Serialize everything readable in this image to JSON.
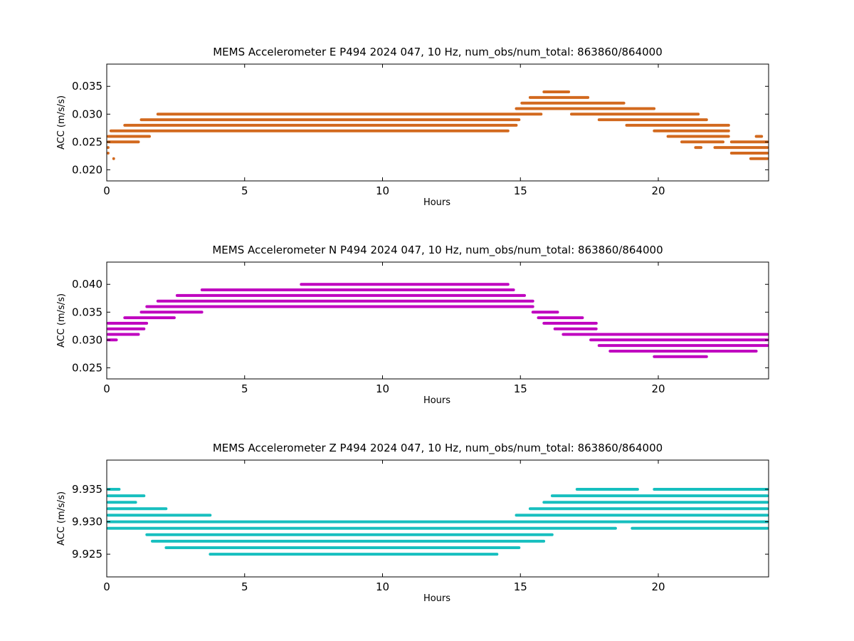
{
  "chart_data": [
    {
      "type": "scatter",
      "title": "MEMS Accelerometer E P494 2024 047, 10 Hz, num_obs/num_total: 863860/864000",
      "xlabel": "Hours",
      "ylabel": "ACC (m/s/s)",
      "xlim": [
        0,
        24
      ],
      "ylim": [
        0.018,
        0.039
      ],
      "xticks": [
        0,
        5,
        10,
        15,
        20
      ],
      "yticks": [
        0.02,
        0.025,
        0.03,
        0.035
      ],
      "ytick_labels": [
        "0.020",
        "0.025",
        "0.030",
        "0.035"
      ],
      "color": "#d2691e",
      "series": [
        {
          "levels": [
            {
              "y": 0.022,
              "x": [
                [
                  0.2,
                  0.3
                ],
                [
                  23.3,
                  24.0
                ]
              ]
            },
            {
              "y": 0.023,
              "x": [
                [
                  0.0,
                  0.1
                ],
                [
                  22.6,
                  24.0
                ]
              ]
            },
            {
              "y": 0.024,
              "x": [
                [
                  0.0,
                  0.1
                ],
                [
                  21.3,
                  21.6
                ],
                [
                  22.0,
                  24.0
                ]
              ]
            },
            {
              "y": 0.025,
              "x": [
                [
                  0.0,
                  1.2
                ],
                [
                  20.8,
                  22.4
                ],
                [
                  22.6,
                  24.0
                ]
              ]
            },
            {
              "y": 0.026,
              "x": [
                [
                  0.0,
                  1.6
                ],
                [
                  20.3,
                  22.6
                ],
                [
                  23.5,
                  23.8
                ]
              ]
            },
            {
              "y": 0.027,
              "x": [
                [
                  0.1,
                  14.6
                ],
                [
                  19.8,
                  22.6
                ]
              ]
            },
            {
              "y": 0.028,
              "x": [
                [
                  0.6,
                  14.9
                ],
                [
                  18.8,
                  22.6
                ]
              ]
            },
            {
              "y": 0.029,
              "x": [
                [
                  1.2,
                  15.0
                ],
                [
                  17.8,
                  21.8
                ]
              ]
            },
            {
              "y": 0.03,
              "x": [
                [
                  1.8,
                  15.8
                ],
                [
                  16.8,
                  21.5
                ]
              ]
            },
            {
              "y": 0.031,
              "x": [
                [
                  14.8,
                  19.9
                ]
              ]
            },
            {
              "y": 0.032,
              "x": [
                [
                  15.0,
                  18.8
                ]
              ]
            },
            {
              "y": 0.033,
              "x": [
                [
                  15.3,
                  17.5
                ]
              ]
            },
            {
              "y": 0.034,
              "x": [
                [
                  15.8,
                  16.8
                ]
              ]
            }
          ]
        }
      ]
    },
    {
      "type": "scatter",
      "title": "MEMS Accelerometer N P494 2024 047, 10 Hz, num_obs/num_total: 863860/864000",
      "xlabel": "Hours",
      "ylabel": "ACC (m/s/s)",
      "xlim": [
        0,
        24
      ],
      "ylim": [
        0.023,
        0.044
      ],
      "xticks": [
        0,
        5,
        10,
        15,
        20
      ],
      "yticks": [
        0.025,
        0.03,
        0.035,
        0.04
      ],
      "ytick_labels": [
        "0.025",
        "0.030",
        "0.035",
        "0.040"
      ],
      "color": "#bf00bf",
      "series": [
        {
          "levels": [
            {
              "y": 0.027,
              "x": [
                [
                  19.8,
                  21.8
                ]
              ]
            },
            {
              "y": 0.028,
              "x": [
                [
                  18.2,
                  23.6
                ]
              ]
            },
            {
              "y": 0.029,
              "x": [
                [
                  17.8,
                  24.0
                ]
              ]
            },
            {
              "y": 0.03,
              "x": [
                [
                  0.0,
                  0.4
                ],
                [
                  17.5,
                  24.0
                ]
              ]
            },
            {
              "y": 0.031,
              "x": [
                [
                  0.0,
                  1.2
                ],
                [
                  16.5,
                  24.0
                ]
              ]
            },
            {
              "y": 0.032,
              "x": [
                [
                  0.0,
                  1.4
                ],
                [
                  16.2,
                  17.8
                ]
              ]
            },
            {
              "y": 0.033,
              "x": [
                [
                  0.0,
                  1.5
                ],
                [
                  15.8,
                  17.8
                ]
              ]
            },
            {
              "y": 0.034,
              "x": [
                [
                  0.6,
                  2.5
                ],
                [
                  15.6,
                  17.3
                ]
              ]
            },
            {
              "y": 0.035,
              "x": [
                [
                  1.2,
                  3.5
                ],
                [
                  15.4,
                  16.4
                ]
              ]
            },
            {
              "y": 0.036,
              "x": [
                [
                  1.4,
                  15.5
                ]
              ]
            },
            {
              "y": 0.037,
              "x": [
                [
                  1.8,
                  15.5
                ]
              ]
            },
            {
              "y": 0.038,
              "x": [
                [
                  2.5,
                  15.2
                ]
              ]
            },
            {
              "y": 0.039,
              "x": [
                [
                  3.4,
                  14.8
                ]
              ]
            },
            {
              "y": 0.04,
              "x": [
                [
                  7.0,
                  14.6
                ]
              ]
            }
          ]
        }
      ]
    },
    {
      "type": "scatter",
      "title": "MEMS Accelerometer Z P494 2024 047, 10 Hz, num_obs/num_total: 863860/864000",
      "xlabel": "Hours",
      "ylabel": "ACC (m/s/s)",
      "xlim": [
        0,
        24
      ],
      "ylim": [
        9.9215,
        9.9395
      ],
      "xticks": [
        0,
        5,
        10,
        15,
        20
      ],
      "yticks": [
        9.925,
        9.93,
        9.935
      ],
      "ytick_labels": [
        "9.925",
        "9.930",
        "9.935"
      ],
      "color": "#17bfbf",
      "series": [
        {
          "levels": [
            {
              "y": 9.925,
              "x": [
                [
                  3.7,
                  14.2
                ]
              ]
            },
            {
              "y": 9.926,
              "x": [
                [
                  2.1,
                  15.0
                ]
              ]
            },
            {
              "y": 9.927,
              "x": [
                [
                  1.6,
                  15.9
                ]
              ]
            },
            {
              "y": 9.928,
              "x": [
                [
                  1.4,
                  16.2
                ]
              ]
            },
            {
              "y": 9.929,
              "x": [
                [
                  0.0,
                  18.5
                ],
                [
                  19.0,
                  24.0
                ]
              ]
            },
            {
              "y": 9.93,
              "x": [
                [
                  0.0,
                  24.0
                ]
              ]
            },
            {
              "y": 9.931,
              "x": [
                [
                  0.0,
                  3.8
                ],
                [
                  14.8,
                  24.0
                ]
              ]
            },
            {
              "y": 9.932,
              "x": [
                [
                  0.0,
                  2.2
                ],
                [
                  15.3,
                  24.0
                ]
              ]
            },
            {
              "y": 9.933,
              "x": [
                [
                  0.0,
                  1.1
                ],
                [
                  15.8,
                  24.0
                ]
              ]
            },
            {
              "y": 9.934,
              "x": [
                [
                  0.0,
                  1.4
                ],
                [
                  16.1,
                  24.0
                ]
              ]
            },
            {
              "y": 9.935,
              "x": [
                [
                  0.0,
                  0.5
                ],
                [
                  17.0,
                  19.3
                ],
                [
                  19.8,
                  24.0
                ]
              ]
            }
          ]
        }
      ]
    }
  ]
}
